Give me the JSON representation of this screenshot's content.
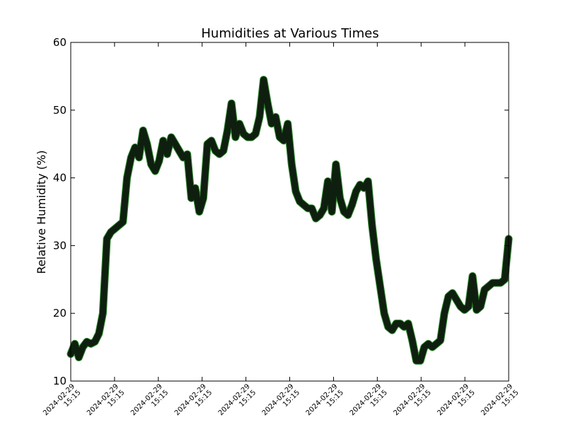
{
  "chart_data": {
    "type": "line",
    "title": "Humidities at Various Times",
    "xlabel": "",
    "ylabel": "Relative Humidity (%)",
    "ylim": [
      10,
      60
    ],
    "yticks": [
      10,
      20,
      30,
      40,
      50,
      60
    ],
    "grid": false,
    "legend": "none",
    "x_tick_labels": [
      [
        "2024-02-29",
        "15:15"
      ],
      [
        "2024-02-29",
        "15:15"
      ],
      [
        "2024-02-29",
        "15:15"
      ],
      [
        "2024-02-29",
        "15:15"
      ],
      [
        "2024-02-29",
        "15:15"
      ],
      [
        "2024-02-29",
        "15:15"
      ],
      [
        "2024-02-29",
        "15:15"
      ],
      [
        "2024-02-29",
        "15:15"
      ],
      [
        "2024-02-29",
        "15:15"
      ],
      [
        "2024-02-29",
        "15:15"
      ],
      [
        "2024-02-29",
        "15:15"
      ]
    ],
    "series": [
      {
        "color": "#0f1f0f",
        "edge_color": "#2e8b2e",
        "values": [
          14.0,
          15.5,
          13.5,
          15.0,
          15.8,
          15.5,
          15.8,
          17.0,
          20.0,
          31.0,
          32.0,
          32.5,
          33.0,
          33.5,
          40.0,
          43.0,
          44.5,
          43.0,
          47.0,
          45.0,
          42.0,
          41.0,
          42.5,
          45.5,
          43.5,
          46.0,
          45.0,
          44.0,
          43.0,
          43.5,
          37.0,
          38.5,
          35.0,
          37.0,
          45.0,
          45.5,
          44.0,
          43.5,
          44.0,
          47.0,
          51.0,
          46.0,
          48.0,
          46.5,
          46.0,
          46.0,
          46.5,
          49.0,
          54.5,
          51.0,
          48.0,
          49.0,
          46.0,
          45.5,
          48.0,
          42.0,
          38.0,
          36.5,
          36.0,
          35.5,
          35.5,
          34.0,
          34.5,
          35.5,
          39.5,
          35.0,
          42.0,
          37.0,
          35.0,
          34.5,
          36.0,
          38.0,
          39.0,
          38.5,
          39.5,
          33.0,
          28.0,
          24.0,
          20.0,
          18.0,
          17.5,
          18.5,
          18.5,
          18.0,
          18.5,
          16.0,
          13.0,
          13.0,
          15.0,
          15.5,
          15.0,
          15.5,
          16.0,
          20.0,
          22.5,
          23.0,
          22.0,
          21.0,
          20.5,
          21.0,
          25.5,
          20.5,
          21.0,
          23.5,
          24.0,
          24.5,
          24.5,
          24.5,
          25.0,
          31.0
        ]
      }
    ]
  }
}
